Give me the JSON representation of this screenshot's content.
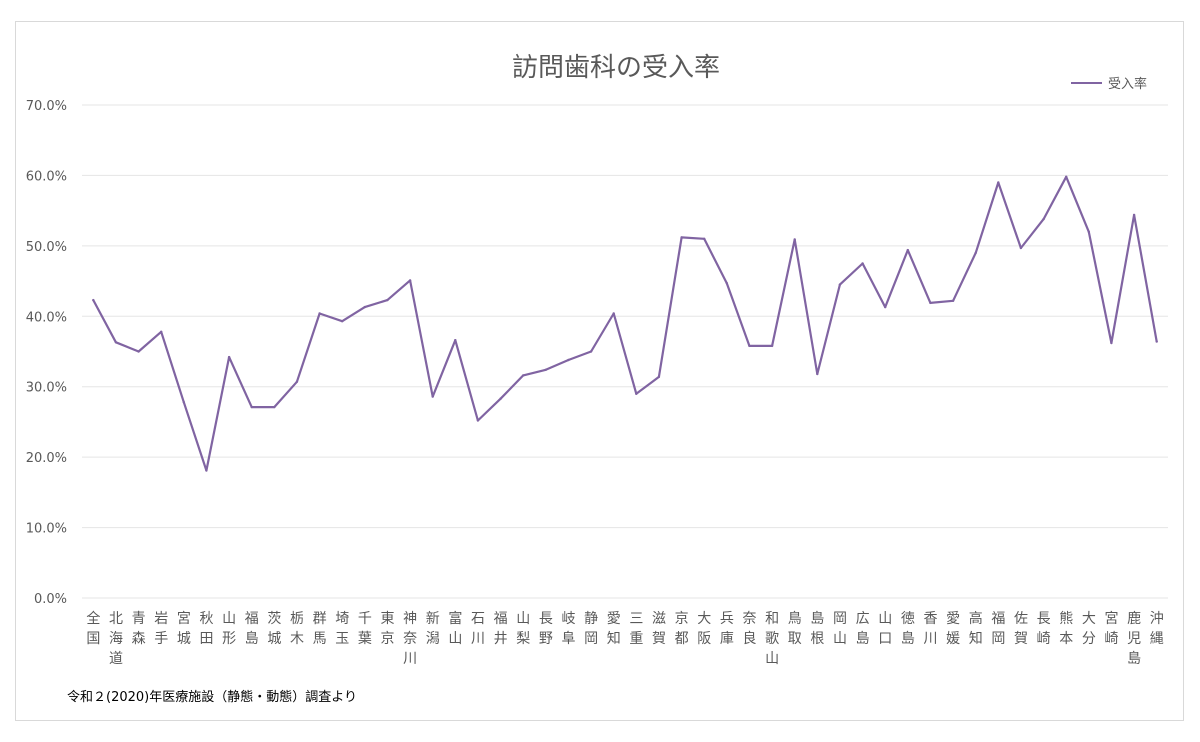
{
  "chart_data": {
    "type": "line",
    "title": "訪問歯科の受入率",
    "xlabel": "",
    "ylabel": "",
    "ylim": [
      0,
      70
    ],
    "y_ticks": [
      "0.0%",
      "10.0%",
      "20.0%",
      "30.0%",
      "40.0%",
      "50.0%",
      "60.0%",
      "70.0%"
    ],
    "grid": true,
    "legend_position": "top-right",
    "categories": [
      "全国",
      "北海道",
      "青森",
      "岩手",
      "宮城",
      "秋田",
      "山形",
      "福島",
      "茨城",
      "栃木",
      "群馬",
      "埼玉",
      "千葉",
      "東京",
      "神奈川",
      "新潟",
      "富山",
      "石川",
      "福井",
      "山梨",
      "長野",
      "岐阜",
      "静岡",
      "愛知",
      "三重",
      "滋賀",
      "京都",
      "大阪",
      "兵庫",
      "奈良",
      "和歌山",
      "鳥取",
      "島根",
      "岡山",
      "広島",
      "山口",
      "徳島",
      "香川",
      "愛媛",
      "高知",
      "福岡",
      "佐賀",
      "長崎",
      "熊本",
      "大分",
      "宮崎",
      "鹿児島",
      "沖縄"
    ],
    "series": [
      {
        "name": "受入率",
        "color": "#8064a2",
        "values": [
          42.3,
          36.3,
          35.0,
          37.8,
          27.8,
          18.1,
          34.2,
          27.1,
          27.1,
          30.7,
          40.4,
          39.3,
          41.3,
          42.3,
          45.1,
          28.6,
          36.6,
          25.2,
          28.3,
          31.6,
          32.4,
          33.8,
          35.0,
          40.4,
          29.0,
          31.4,
          51.2,
          51.0,
          44.7,
          35.8,
          35.8,
          50.9,
          31.8,
          44.5,
          47.5,
          41.3,
          49.4,
          41.9,
          42.2,
          49.0,
          59.0,
          49.7,
          53.8,
          59.8,
          52.0,
          36.2,
          54.4,
          36.4
        ]
      }
    ],
    "note": "令和２(2020)年医療施設（静態・動態）調査より"
  }
}
